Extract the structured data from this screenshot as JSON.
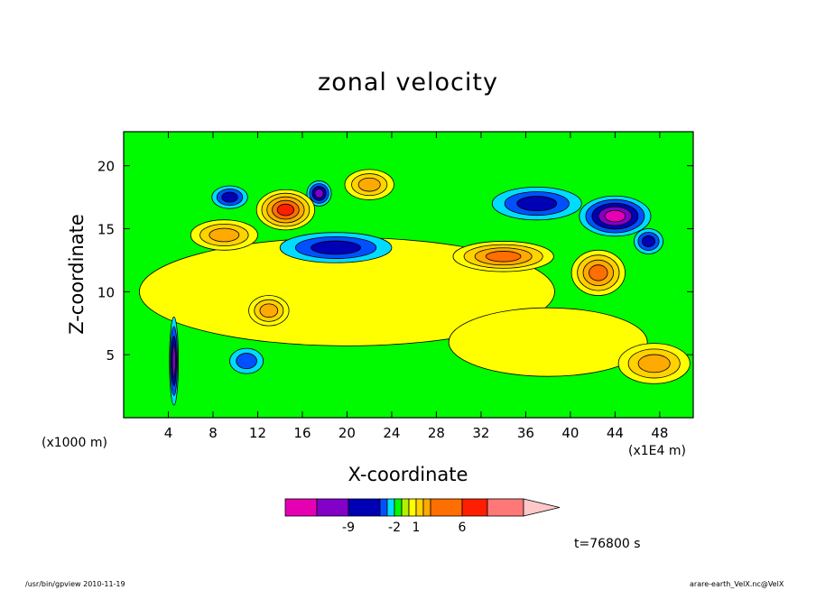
{
  "chart_data": {
    "type": "heatmap",
    "title": "zonal velocity",
    "xlabel": "X-coordinate",
    "ylabel": "Z-coordinate",
    "x_unit_left": "(x1000 m)",
    "x_unit_right": "(x1E4 m)",
    "x_ticks": [
      4,
      8,
      12,
      16,
      20,
      24,
      28,
      32,
      36,
      40,
      44,
      48
    ],
    "y_ticks": [
      5,
      10,
      15,
      20
    ],
    "xlim": [
      0,
      51
    ],
    "ylim": [
      0,
      22.7
    ],
    "colorbar": {
      "colors": [
        "#e600b4",
        "#8200c8",
        "#0000b4",
        "#0050ff",
        "#00dcff",
        "#00fa00",
        "#b4f000",
        "#ffff00",
        "#ffd200",
        "#ffaa00",
        "#ff6e00",
        "#ff1e00",
        "#ff7878",
        "#ffc8c8"
      ],
      "labels": [
        {
          "text": "-9",
          "after_box": 1
        },
        {
          "text": "-2",
          "after_box": 4
        },
        {
          "text": "1",
          "after_box": 7
        },
        {
          "text": "6",
          "after_box": 10
        }
      ]
    },
    "features": [
      {
        "sign": "negative",
        "x": 17.5,
        "z": 17.8,
        "rx": 1.1,
        "rz": 1.0,
        "amp": -4
      },
      {
        "sign": "positive",
        "x": 14.5,
        "z": 16.5,
        "rx": 2.6,
        "rz": 1.6,
        "amp": 5
      },
      {
        "sign": "positive",
        "x": 22,
        "z": 18.5,
        "rx": 2.2,
        "rz": 1.2,
        "amp": 3
      },
      {
        "sign": "negative",
        "x": 19,
        "z": 13.5,
        "rx": 5,
        "rz": 1.2,
        "amp": -2.5
      },
      {
        "sign": "negative",
        "x": 44,
        "z": 16,
        "rx": 3.2,
        "rz": 1.6,
        "amp": -6
      },
      {
        "sign": "negative",
        "x": 37,
        "z": 17,
        "rx": 4,
        "rz": 1.3,
        "amp": -2.5
      },
      {
        "sign": "positive",
        "x": 34,
        "z": 12.8,
        "rx": 4.5,
        "rz": 1.2,
        "amp": 3.5
      },
      {
        "sign": "positive",
        "x": 42.5,
        "z": 11.5,
        "rx": 2.4,
        "rz": 1.8,
        "amp": 3.5
      },
      {
        "sign": "positive",
        "x": 47.5,
        "z": 4.3,
        "rx": 3.2,
        "rz": 1.6,
        "amp": 2.5
      },
      {
        "sign": "negative",
        "x": 47,
        "z": 14,
        "rx": 1.3,
        "rz": 1.0,
        "amp": -3
      },
      {
        "sign": "negative",
        "x": 11,
        "z": 4.5,
        "rx": 1.5,
        "rz": 1.0,
        "amp": -2
      },
      {
        "sign": "positive",
        "x": 13,
        "z": 8.5,
        "rx": 1.8,
        "rz": 1.2,
        "amp": 2.5
      },
      {
        "sign": "positive",
        "x": 9,
        "z": 14.5,
        "rx": 3,
        "rz": 1.2,
        "amp": 3
      },
      {
        "sign": "negative",
        "x": 9.5,
        "z": 17.5,
        "rx": 1.6,
        "rz": 0.9,
        "amp": -3
      },
      {
        "sign": "negative",
        "x": 4.5,
        "z": 4.5,
        "rx": 0.4,
        "rz": 3.5,
        "amp": -4
      }
    ]
  },
  "timestamp": "t=76800 s",
  "footer_left": "/usr/bin/gpview   2010-11-19",
  "footer_right": "arare-earth_VelX.nc@VelX"
}
